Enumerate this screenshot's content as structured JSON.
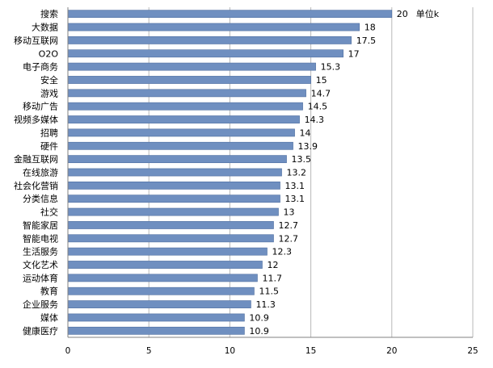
{
  "chart_data": {
    "type": "bar",
    "orientation": "horizontal",
    "categories": [
      "搜索",
      "大数据",
      "移动互联网",
      "O2O",
      "电子商务",
      "安全",
      "游戏",
      "移动广告",
      "视频多媒体",
      "招聘",
      "硬件",
      "金融互联网",
      "在线旅游",
      "社会化营销",
      "分类信息",
      "社交",
      "智能家居",
      "智能电视",
      "生活服务",
      "文化艺术",
      "运动体育",
      "教育",
      "企业服务",
      "媒体",
      "健康医疗"
    ],
    "values": [
      20,
      18,
      17.5,
      17,
      15.3,
      15,
      14.7,
      14.5,
      14.3,
      14,
      13.9,
      13.5,
      13.2,
      13.1,
      13.1,
      13,
      12.7,
      12.7,
      12.3,
      12,
      11.7,
      11.5,
      11.3,
      10.9,
      10.9
    ],
    "value_labels": [
      "20",
      "18",
      "17.5",
      "17",
      "15.3",
      "15",
      "14.7",
      "14.5",
      "14.3",
      "14",
      "13.9",
      "13.5",
      "13.2",
      "13.1",
      "13.1",
      "13",
      "12.7",
      "12.7",
      "12.3",
      "12",
      "11.7",
      "11.5",
      "11.3",
      "10.9",
      "10.9"
    ],
    "unit_label": "单位k",
    "xlim": [
      0,
      25
    ],
    "xticks": [
      "0",
      "5",
      "10",
      "15",
      "20",
      "25"
    ],
    "xtick_values": [
      0,
      5,
      10,
      15,
      20,
      25
    ],
    "grid": "vertical",
    "legend": "none",
    "colors": {
      "bar": "#6f8fc0",
      "bar_edge": "#4f6fa0",
      "grid": "#b8b8b8",
      "axis": "#808080"
    }
  }
}
